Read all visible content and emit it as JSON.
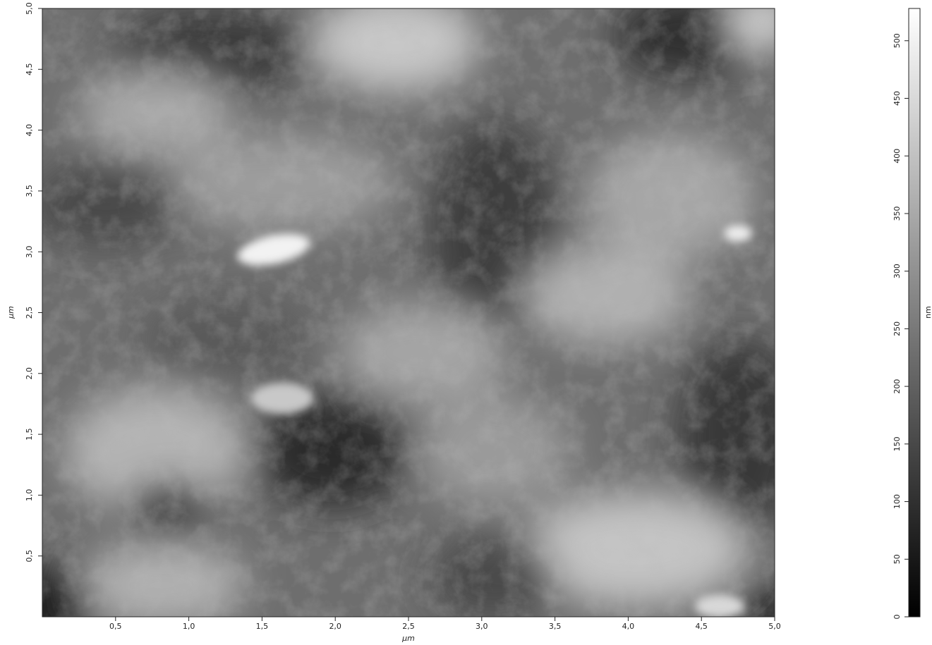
{
  "chart_data": {
    "type": "afm-image",
    "x_label": "µm",
    "y_label": "µm",
    "colorbar_label": "nm",
    "xlim": [
      0,
      5.0
    ],
    "ylim": [
      0,
      5.0
    ],
    "xticks": [
      {
        "value": 0.5,
        "label": "0,5"
      },
      {
        "value": 1.0,
        "label": "1,0"
      },
      {
        "value": 1.5,
        "label": "1,5"
      },
      {
        "value": 2.0,
        "label": "2,0"
      },
      {
        "value": 2.5,
        "label": "2,5"
      },
      {
        "value": 3.0,
        "label": "3,0"
      },
      {
        "value": 3.5,
        "label": "3,5"
      },
      {
        "value": 4.0,
        "label": "4,0"
      },
      {
        "value": 4.5,
        "label": "4,5"
      },
      {
        "value": 5.0,
        "label": "5,0"
      }
    ],
    "yticks": [
      {
        "value": 0.5,
        "label": "0,5"
      },
      {
        "value": 1.0,
        "label": "1,0"
      },
      {
        "value": 1.5,
        "label": "1,5"
      },
      {
        "value": 2.0,
        "label": "2,0"
      },
      {
        "value": 2.5,
        "label": "2,5"
      },
      {
        "value": 3.0,
        "label": "3,0"
      },
      {
        "value": 3.5,
        "label": "3,5"
      },
      {
        "value": 4.0,
        "label": "4,0"
      },
      {
        "value": 4.5,
        "label": "4,5"
      },
      {
        "value": 5.0,
        "label": "5,0"
      }
    ],
    "clim": [
      0,
      528
    ],
    "cticks": [
      0,
      50,
      100,
      150,
      200,
      250,
      300,
      350,
      400,
      450,
      500
    ]
  }
}
